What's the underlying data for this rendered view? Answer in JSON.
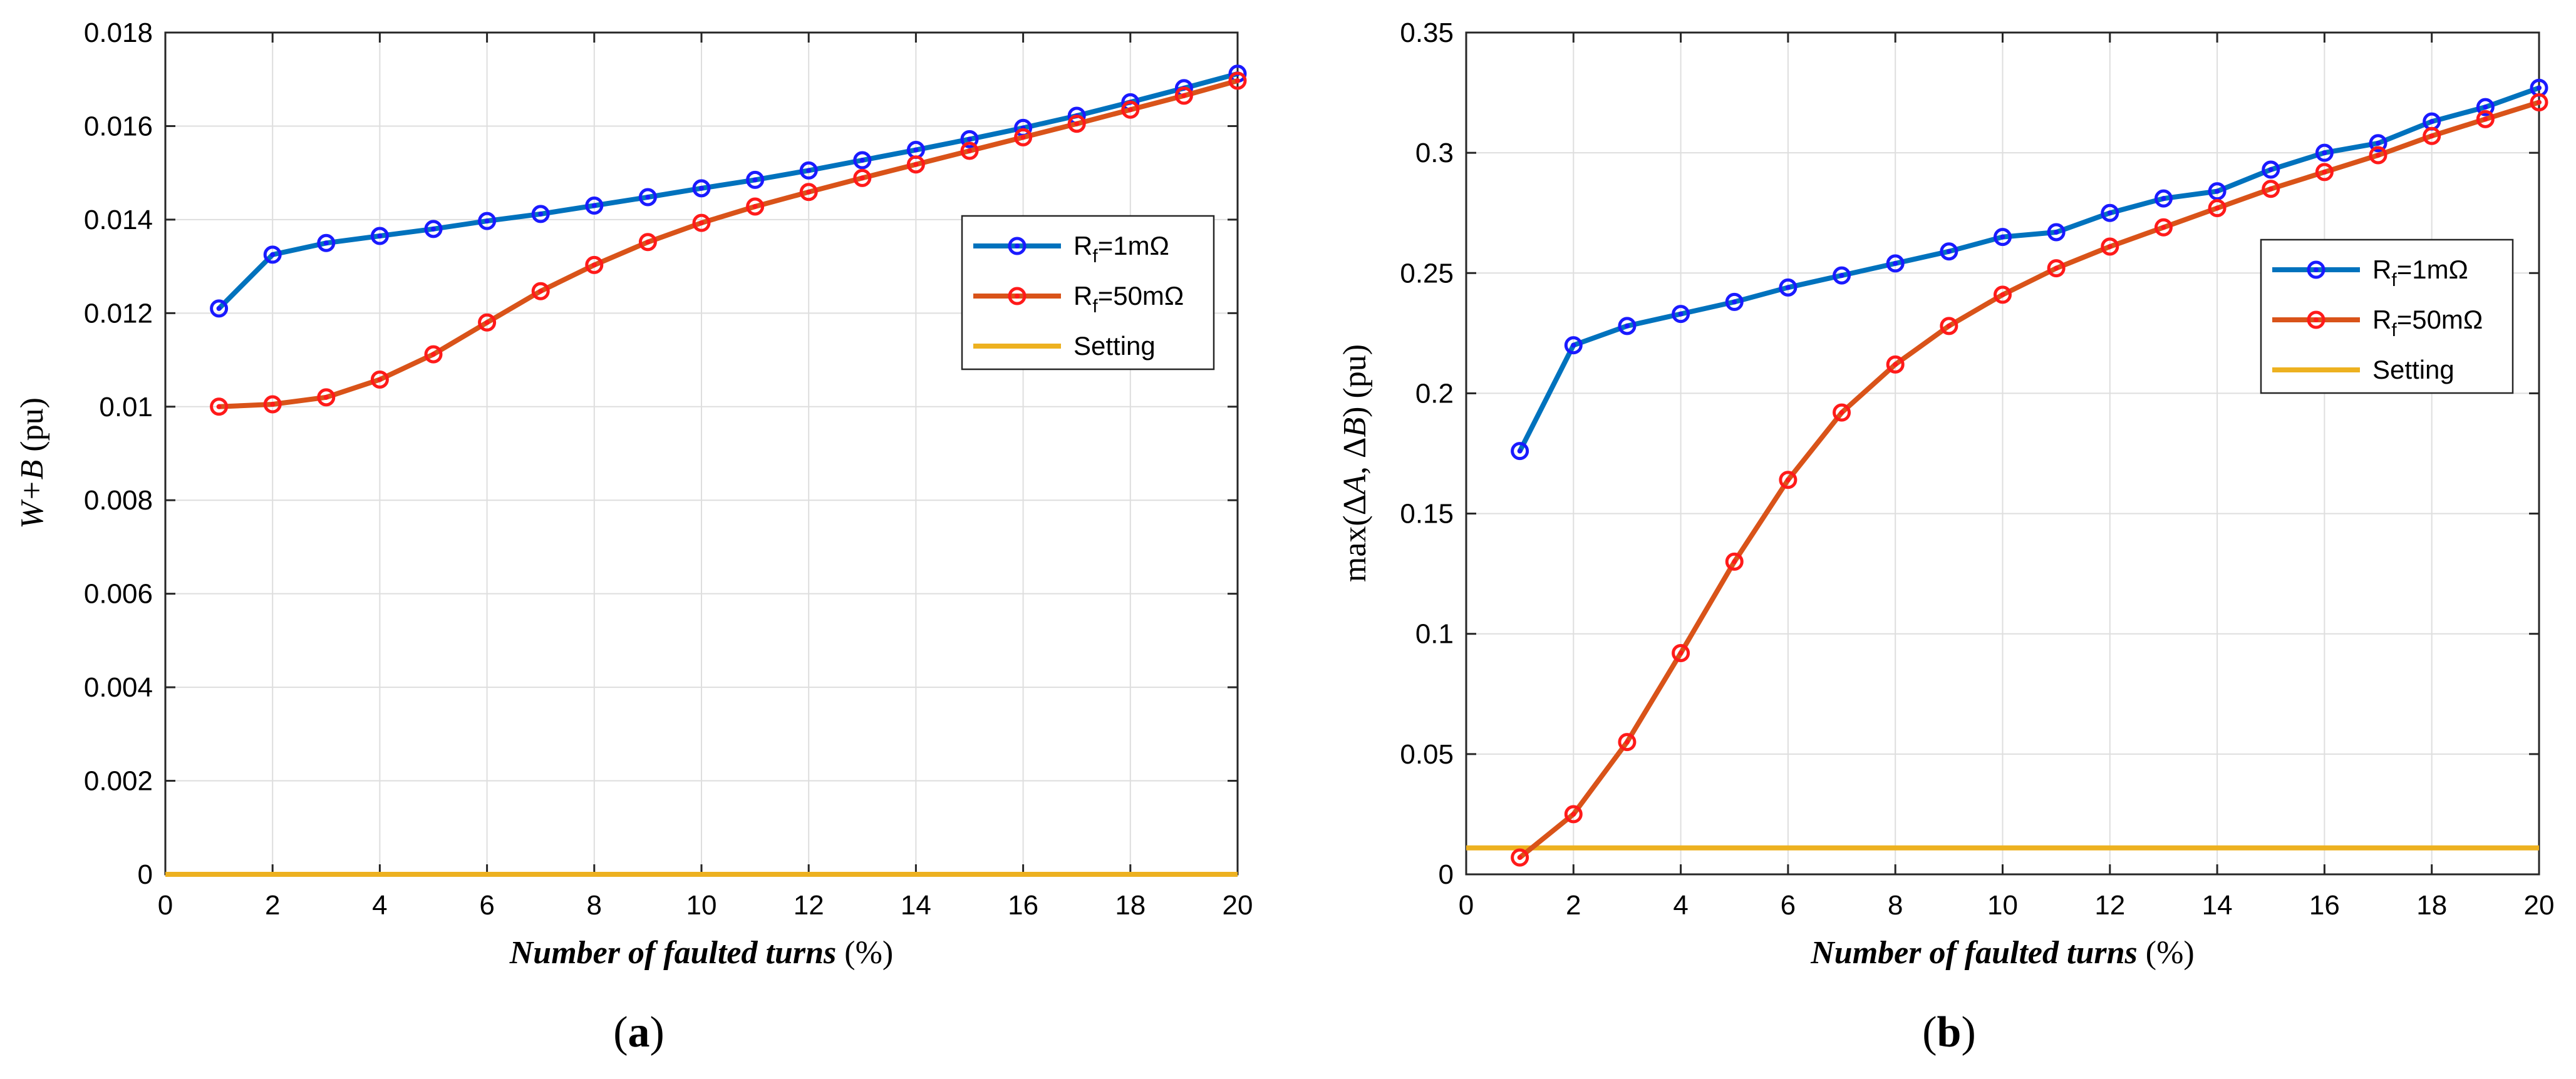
{
  "chart_data": [
    {
      "type": "line",
      "panel_label": "(a)",
      "xlabel": {
        "italic": "Number of faulted turns",
        "suffix": " (%)"
      },
      "ylabel": {
        "italic": "W+B",
        "suffix": " (pu)"
      },
      "xlim": [
        0,
        20
      ],
      "ylim": [
        0,
        0.018
      ],
      "xticks": [
        0,
        2,
        4,
        6,
        8,
        10,
        12,
        14,
        16,
        18,
        20
      ],
      "yticks": [
        0,
        0.002,
        0.004,
        0.006,
        0.008,
        0.01,
        0.012,
        0.014,
        0.016,
        0.018
      ],
      "ytick_labels": [
        "0",
        "0.002",
        "0.004",
        "0.006",
        "0.008",
        "0.01",
        "0.012",
        "0.014",
        "0.016",
        "0.018"
      ],
      "grid": true,
      "legend_position": "right",
      "series": [
        {
          "name_main": "R",
          "name_sub": "f",
          "name_rest": "=1mΩ",
          "color": "#0072BD",
          "marker_color": "#1a1aff",
          "marker": "circle",
          "x": [
            1,
            2,
            3,
            4,
            5,
            6,
            7,
            8,
            9,
            10,
            11,
            12,
            13,
            14,
            15,
            16,
            17,
            18,
            19,
            20
          ],
          "values": [
            0.0121,
            0.01325,
            0.0135,
            0.01365,
            0.0138,
            0.01397,
            0.01412,
            0.0143,
            0.01448,
            0.01467,
            0.01485,
            0.01505,
            0.01527,
            0.01549,
            0.01572,
            0.01596,
            0.01622,
            0.01651,
            0.01681,
            0.01712
          ]
        },
        {
          "name_main": "R",
          "name_sub": "f",
          "name_rest": "=50mΩ",
          "color": "#D95319",
          "marker_color": "#ff1a1a",
          "marker": "circle",
          "x": [
            1,
            2,
            3,
            4,
            5,
            6,
            7,
            8,
            9,
            10,
            11,
            12,
            13,
            14,
            15,
            16,
            17,
            18,
            19,
            20
          ],
          "values": [
            0.01,
            0.01005,
            0.0102,
            0.01058,
            0.01112,
            0.0118,
            0.01247,
            0.01303,
            0.01352,
            0.01393,
            0.01428,
            0.01459,
            0.01489,
            0.01518,
            0.01547,
            0.01576,
            0.01605,
            0.01635,
            0.01665,
            0.01697
          ]
        },
        {
          "name_main": "Setting",
          "name_sub": "",
          "name_rest": "",
          "color": "#EDB120",
          "marker_color": "",
          "marker": "none",
          "x": [
            0,
            20
          ],
          "values": [
            0,
            0
          ]
        }
      ]
    },
    {
      "type": "line",
      "panel_label": "(b)",
      "xlabel": {
        "italic": "Number of faulted turns",
        "suffix": " (%)"
      },
      "ylabel": {
        "pre": "max(Δ",
        "v1": "A",
        "mid": ", Δ",
        "v2": "B",
        "post": ") (pu)"
      },
      "xlim": [
        0,
        20
      ],
      "ylim": [
        0,
        0.35
      ],
      "xticks": [
        0,
        2,
        4,
        6,
        8,
        10,
        12,
        14,
        16,
        18,
        20
      ],
      "yticks": [
        0,
        0.05,
        0.1,
        0.15,
        0.2,
        0.25,
        0.3,
        0.35
      ],
      "ytick_labels": [
        "0",
        "0.05",
        "0.1",
        "0.15",
        "0.2",
        "0.25",
        "0.3",
        "0.35"
      ],
      "grid": true,
      "legend_position": "right",
      "series": [
        {
          "name_main": "R",
          "name_sub": "f",
          "name_rest": "=1mΩ",
          "color": "#0072BD",
          "marker_color": "#1a1aff",
          "marker": "circle",
          "x": [
            1,
            2,
            3,
            4,
            5,
            6,
            7,
            8,
            9,
            10,
            11,
            12,
            13,
            14,
            15,
            16,
            17,
            18,
            19,
            20
          ],
          "values": [
            0.176,
            0.22,
            0.228,
            0.233,
            0.238,
            0.244,
            0.249,
            0.254,
            0.259,
            0.265,
            0.267,
            0.275,
            0.281,
            0.284,
            0.293,
            0.3,
            0.304,
            0.313,
            0.319,
            0.327
          ]
        },
        {
          "name_main": "R",
          "name_sub": "f",
          "name_rest": "=50mΩ",
          "color": "#D95319",
          "marker_color": "#ff1a1a",
          "marker": "circle",
          "x": [
            1,
            2,
            3,
            4,
            5,
            6,
            7,
            8,
            9,
            10,
            11,
            12,
            13,
            14,
            15,
            16,
            17,
            18,
            19,
            20
          ],
          "values": [
            0.007,
            0.025,
            0.055,
            0.092,
            0.13,
            0.164,
            0.192,
            0.212,
            0.228,
            0.241,
            0.252,
            0.261,
            0.269,
            0.277,
            0.285,
            0.292,
            0.299,
            0.307,
            0.314,
            0.321
          ]
        },
        {
          "name_main": "Setting",
          "name_sub": "",
          "name_rest": "",
          "color": "#EDB120",
          "marker_color": "",
          "marker": "none",
          "x": [
            0,
            20
          ],
          "values": [
            0.011,
            0.011
          ]
        }
      ]
    }
  ]
}
